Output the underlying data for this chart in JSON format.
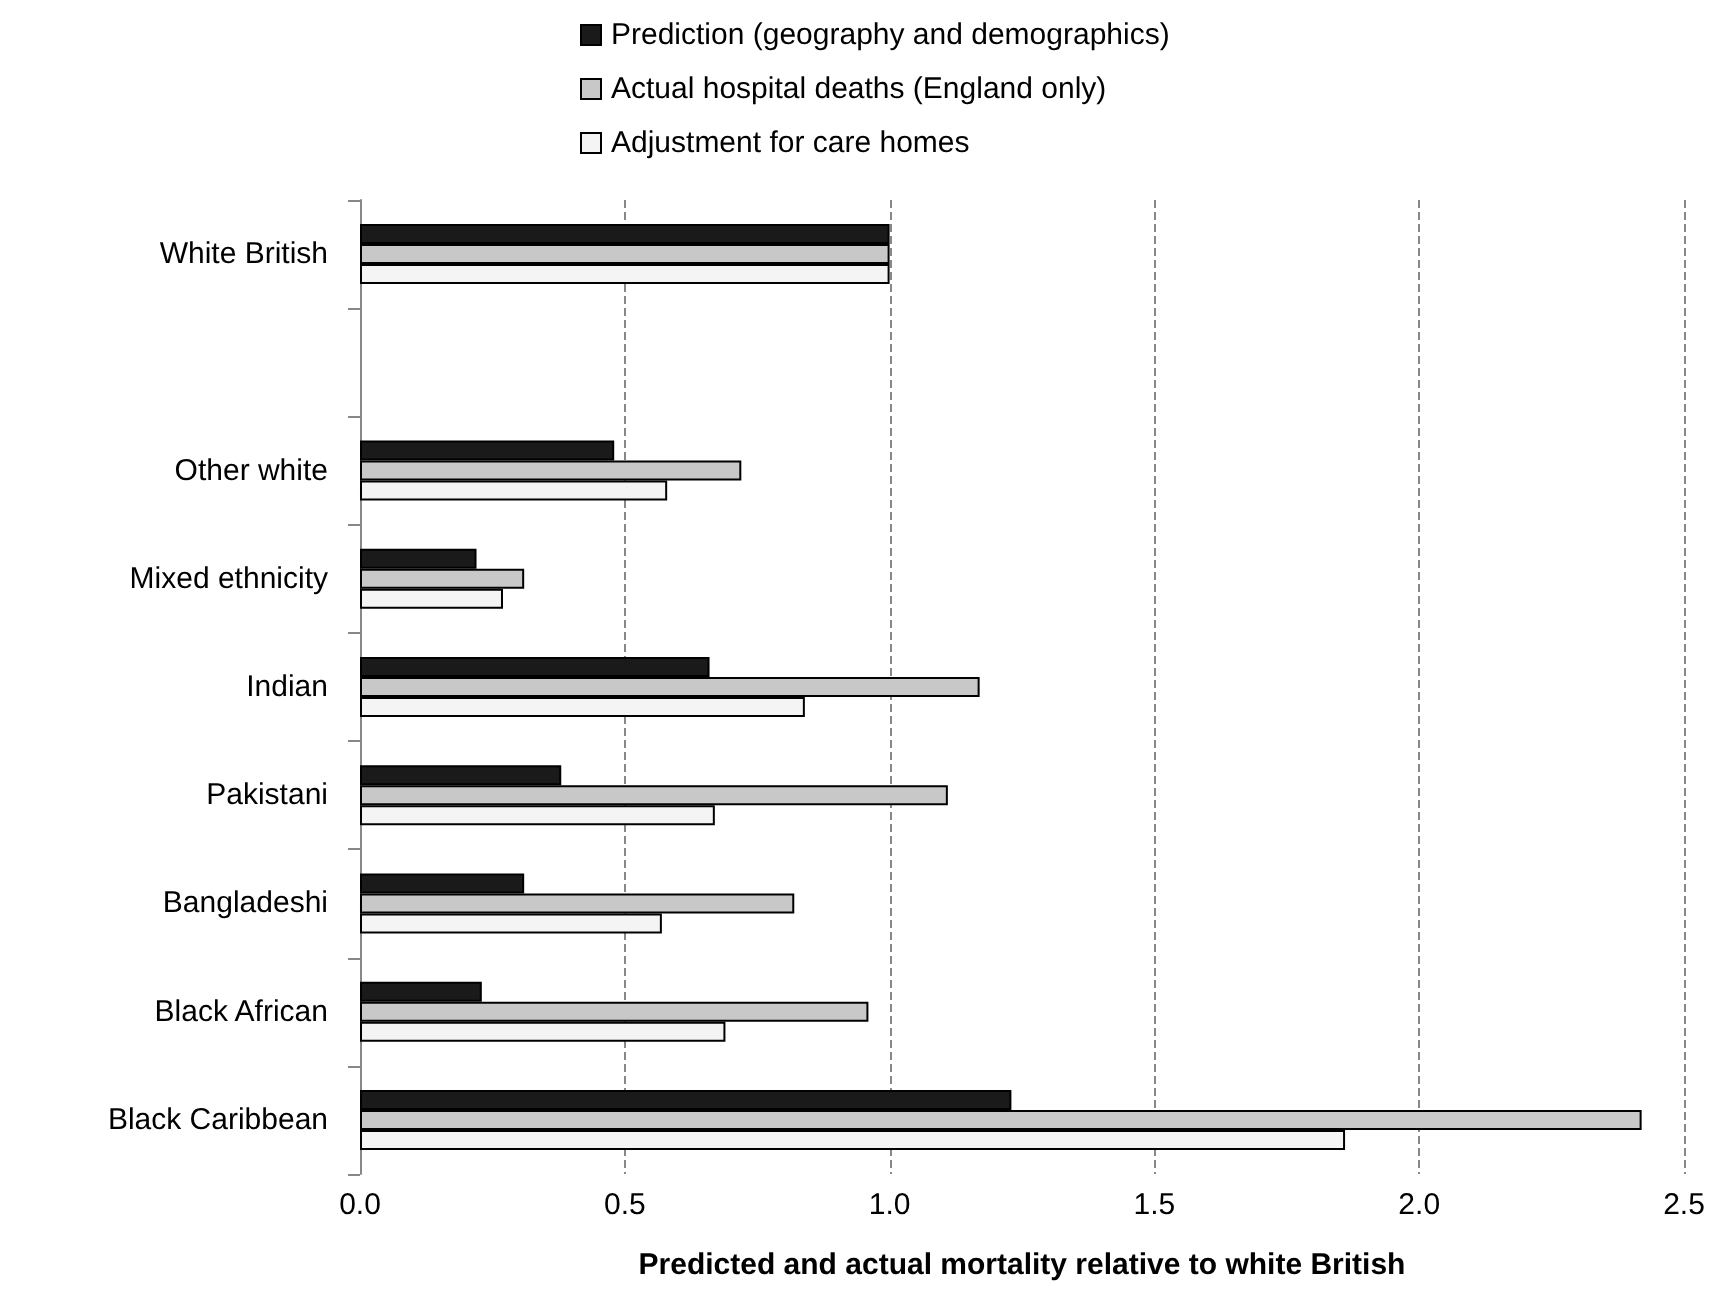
{
  "chart_data": {
    "type": "bar",
    "orientation": "horizontal",
    "xlabel": "Predicted and actual mortality relative to white British",
    "categories": [
      "White British",
      null,
      "Other white",
      "Mixed ethnicity",
      "Indian",
      "Pakistani",
      "Bangladeshi",
      "Black African",
      "Black Caribbean"
    ],
    "series": [
      {
        "name": "Prediction (geography and demographics)",
        "color": "#1a1a1a",
        "values": [
          1.0,
          null,
          0.48,
          0.22,
          0.66,
          0.38,
          0.31,
          0.23,
          1.23
        ]
      },
      {
        "name": "Actual hospital deaths (England only)",
        "color": "#c8c8c8",
        "values": [
          1.0,
          null,
          0.72,
          0.31,
          1.17,
          1.11,
          0.82,
          0.96,
          2.42
        ]
      },
      {
        "name": "Adjustment for care homes",
        "color": "#f4f4f4",
        "values": [
          1.0,
          null,
          0.58,
          0.27,
          0.84,
          0.67,
          0.57,
          0.69,
          1.86
        ]
      }
    ],
    "xlim": [
      0,
      2.5
    ],
    "xticks": [
      {
        "value": 0,
        "label": "0.0"
      },
      {
        "value": 0.5,
        "label": "0.5"
      },
      {
        "value": 1,
        "label": "1.0"
      },
      {
        "value": 1.5,
        "label": "1.5"
      },
      {
        "value": 2,
        "label": "2.0"
      },
      {
        "value": 2.5,
        "label": "2.5"
      }
    ],
    "grid": "x",
    "legend": "top"
  }
}
